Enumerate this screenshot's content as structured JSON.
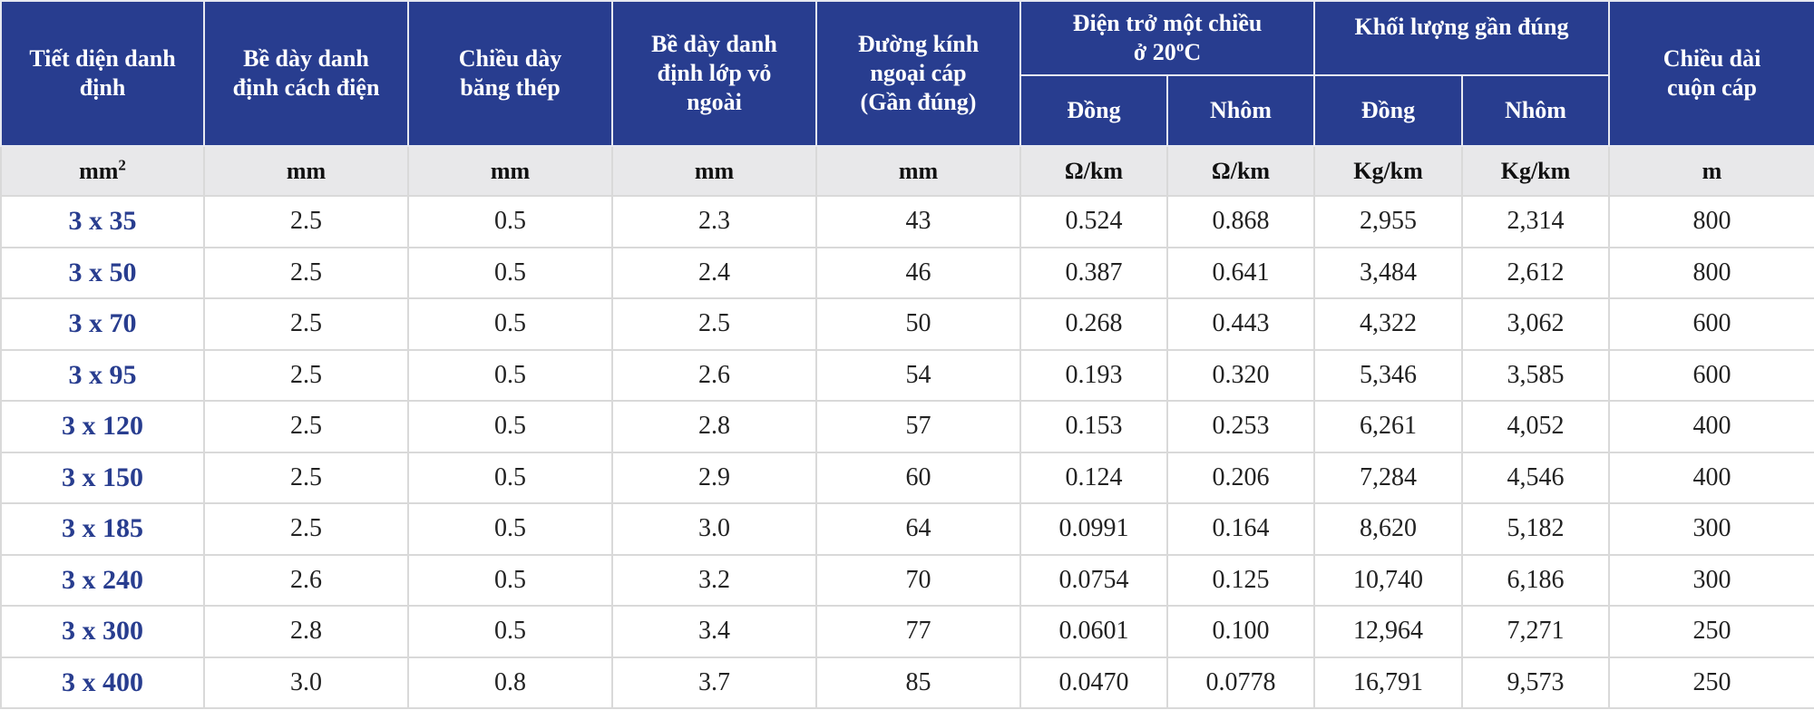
{
  "header": {
    "col_section": [
      "Tiết diện danh",
      "định"
    ],
    "col_insulation": [
      "Bề dày danh",
      "định cách điện"
    ],
    "col_steel_tape": [
      "Chiều dày",
      "băng thép"
    ],
    "col_sheath": [
      "Bề dày danh",
      "định lớp vỏ",
      "ngoài"
    ],
    "col_diameter": [
      "Đường kính",
      "ngoại cáp",
      "(Gần đúng)"
    ],
    "group_resistance": [
      "Điện trở một chiều",
      "ở 20",
      "o",
      "C"
    ],
    "group_weight": "Khối lượng gần đúng",
    "col_length": [
      "Chiều dài",
      "cuộn cáp"
    ],
    "sub_copper": "Đồng",
    "sub_aluminium": "Nhôm"
  },
  "units": {
    "section": "mm",
    "section_sup": "2",
    "insulation": "mm",
    "steel_tape": "mm",
    "sheath": "mm",
    "diameter": "mm",
    "res_cu": "Ω/km",
    "res_al": "Ω/km",
    "wt_cu": "Kg/km",
    "wt_al": "Kg/km",
    "length": "m"
  },
  "rows": [
    {
      "size": "3 x 35",
      "insulation": "2.5",
      "steel": "0.5",
      "sheath": "2.3",
      "diameter": "43",
      "res_cu": "0.524",
      "res_al": "0.868",
      "wt_cu": "2,955",
      "wt_al": "2,314",
      "length": "800"
    },
    {
      "size": "3 x 50",
      "insulation": "2.5",
      "steel": "0.5",
      "sheath": "2.4",
      "diameter": "46",
      "res_cu": "0.387",
      "res_al": "0.641",
      "wt_cu": "3,484",
      "wt_al": "2,612",
      "length": "800"
    },
    {
      "size": "3 x 70",
      "insulation": "2.5",
      "steel": "0.5",
      "sheath": "2.5",
      "diameter": "50",
      "res_cu": "0.268",
      "res_al": "0.443",
      "wt_cu": "4,322",
      "wt_al": "3,062",
      "length": "600"
    },
    {
      "size": "3 x 95",
      "insulation": "2.5",
      "steel": "0.5",
      "sheath": "2.6",
      "diameter": "54",
      "res_cu": "0.193",
      "res_al": "0.320",
      "wt_cu": "5,346",
      "wt_al": "3,585",
      "length": "600"
    },
    {
      "size": "3 x 120",
      "insulation": "2.5",
      "steel": "0.5",
      "sheath": "2.8",
      "diameter": "57",
      "res_cu": "0.153",
      "res_al": "0.253",
      "wt_cu": "6,261",
      "wt_al": "4,052",
      "length": "400"
    },
    {
      "size": "3 x 150",
      "insulation": "2.5",
      "steel": "0.5",
      "sheath": "2.9",
      "diameter": "60",
      "res_cu": "0.124",
      "res_al": "0.206",
      "wt_cu": "7,284",
      "wt_al": "4,546",
      "length": "400"
    },
    {
      "size": "3 x 185",
      "insulation": "2.5",
      "steel": "0.5",
      "sheath": "3.0",
      "diameter": "64",
      "res_cu": "0.0991",
      "res_al": "0.164",
      "wt_cu": "8,620",
      "wt_al": "5,182",
      "length": "300"
    },
    {
      "size": "3 x 240",
      "insulation": "2.6",
      "steel": "0.5",
      "sheath": "3.2",
      "diameter": "70",
      "res_cu": "0.0754",
      "res_al": "0.125",
      "wt_cu": "10,740",
      "wt_al": "6,186",
      "length": "300"
    },
    {
      "size": "3 x 300",
      "insulation": "2.8",
      "steel": "0.5",
      "sheath": "3.4",
      "diameter": "77",
      "res_cu": "0.0601",
      "res_al": "0.100",
      "wt_cu": "12,964",
      "wt_al": "7,271",
      "length": "250"
    },
    {
      "size": "3 x 400",
      "insulation": "3.0",
      "steel": "0.8",
      "sheath": "3.7",
      "diameter": "85",
      "res_cu": "0.0470",
      "res_al": "0.0778",
      "wt_cu": "16,791",
      "wt_al": "9,573",
      "length": "250"
    }
  ],
  "colors": {
    "header_bg": "#283d8f",
    "units_bg": "#e8e8ea",
    "size_text": "#283d8f"
  }
}
